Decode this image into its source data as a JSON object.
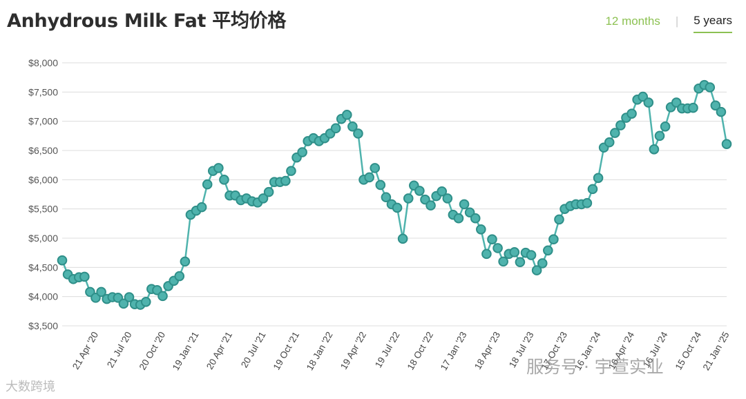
{
  "header": {
    "title": "Anhydrous Milk Fat 平均价格",
    "tab_12": "12 months",
    "tab_sep": "|",
    "tab_5": "5 years"
  },
  "watermarks": {
    "right": "服务号 · 宇萱实业",
    "left": "大数跨境"
  },
  "colors": {
    "line": "#4fb3ad",
    "marker_edge": "#2f8f89",
    "accent": "#8cc152"
  },
  "chart_data": {
    "type": "line",
    "ylim": [
      3500,
      8000
    ],
    "yticks": [
      3500,
      4000,
      4500,
      5000,
      5500,
      6000,
      6500,
      7000,
      7500,
      8000
    ],
    "ytick_labels": [
      "$3,500",
      "$4,000",
      "$4,500",
      "$5,000",
      "$5,500",
      "$6,000",
      "$6,500",
      "$7,000",
      "$7,500",
      "$8,000"
    ],
    "xtick_labels": [
      {
        "label": "21 Apr '20",
        "index": 6
      },
      {
        "label": "21 Jul '20",
        "index": 12
      },
      {
        "label": "20 Oct '20",
        "index": 18
      },
      {
        "label": "19 Jan '21",
        "index": 24
      },
      {
        "label": "20 Apr '21",
        "index": 30
      },
      {
        "label": "20 Jul '21",
        "index": 36
      },
      {
        "label": "19 Oct '21",
        "index": 42
      },
      {
        "label": "18 Jan '22",
        "index": 48
      },
      {
        "label": "19 Apr '22",
        "index": 54
      },
      {
        "label": "19 Jul '22",
        "index": 60
      },
      {
        "label": "18 Oct '22",
        "index": 66
      },
      {
        "label": "17 Jan '23",
        "index": 72
      },
      {
        "label": "18 Apr '23",
        "index": 78
      },
      {
        "label": "18 Jul '23",
        "index": 84
      },
      {
        "label": "17 Oct '23",
        "index": 90
      },
      {
        "label": "16 Jan '24",
        "index": 96
      },
      {
        "label": "16 Apr '24",
        "index": 102
      },
      {
        "label": "16 Jul '24",
        "index": 108
      },
      {
        "label": "15 Oct '24",
        "index": 114
      },
      {
        "label": "21 Jan '25",
        "index": 119
      }
    ],
    "series": [
      {
        "values": [
          4620,
          4380,
          4300,
          4330,
          4340,
          4080,
          3980,
          4080,
          3960,
          3990,
          3980,
          3880,
          3990,
          3870,
          3860,
          3910,
          4130,
          4110,
          4010,
          4180,
          4270,
          4350,
          4600,
          5400,
          5470,
          5530,
          5920,
          6150,
          6200,
          6000,
          5730,
          5730,
          5650,
          5680,
          5630,
          5610,
          5680,
          5790,
          5960,
          5960,
          5980,
          6150,
          6380,
          6470,
          6660,
          6710,
          6660,
          6710,
          6790,
          6880,
          7040,
          7110,
          6910,
          6790,
          6000,
          6040,
          6200,
          5910,
          5700,
          5580,
          5520,
          4990,
          5680,
          5900,
          5810,
          5660,
          5560,
          5720,
          5800,
          5680,
          5400,
          5340,
          5580,
          5440,
          5340,
          5150,
          4730,
          4980,
          4830,
          4600,
          4730,
          4760,
          4590,
          4750,
          4710,
          4450,
          4570,
          4790,
          4980,
          5320,
          5500,
          5550,
          5580,
          5580,
          5600,
          5840,
          6030,
          6550,
          6640,
          6800,
          6930,
          7060,
          7130,
          7370,
          7420,
          7320,
          6520,
          6750,
          6910,
          7240,
          7320,
          7220,
          7220,
          7230,
          7560,
          7620,
          7580,
          7270,
          7160,
          6610
        ]
      }
    ]
  }
}
